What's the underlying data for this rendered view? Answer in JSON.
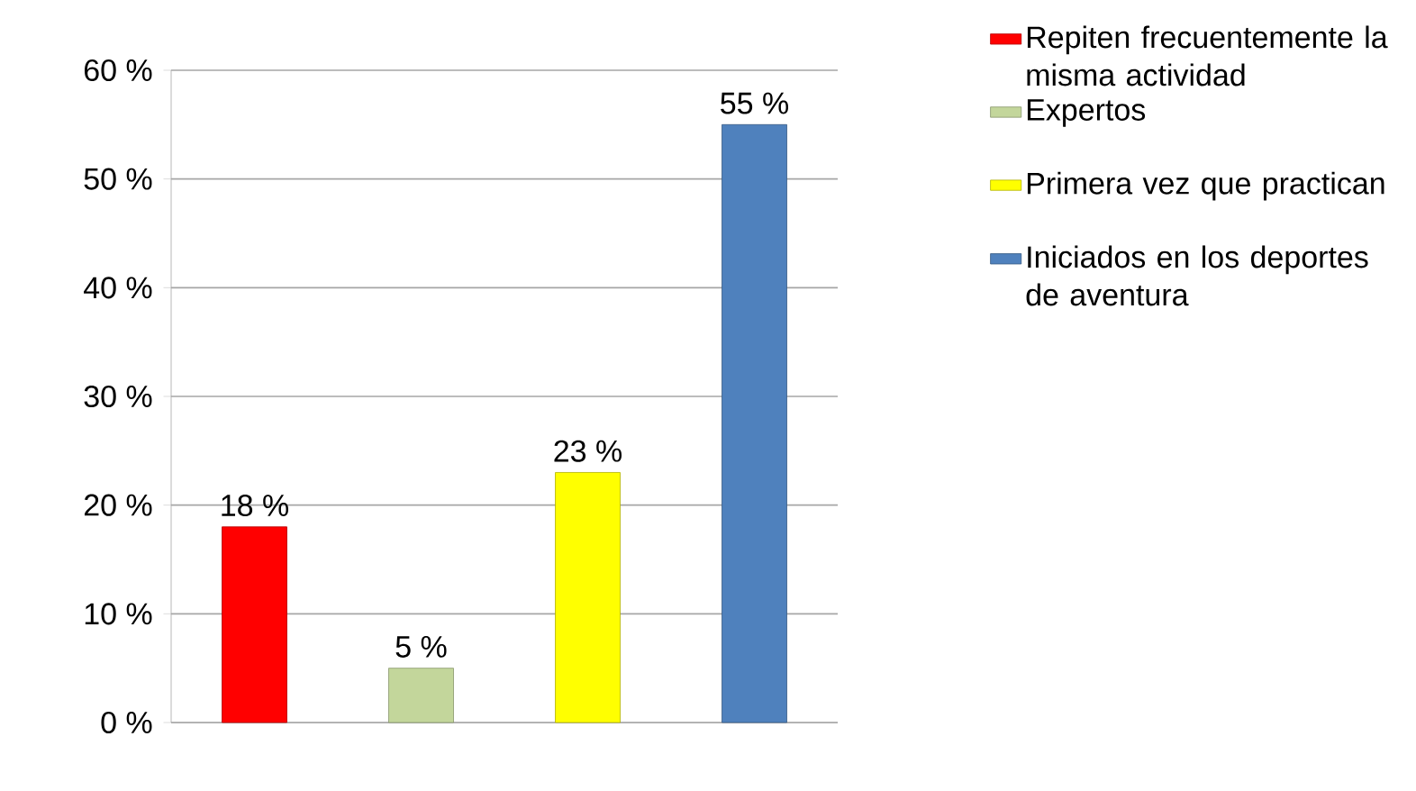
{
  "chart_data": {
    "type": "bar",
    "categories": [
      null,
      null,
      null,
      null
    ],
    "series": [
      {
        "name": "Repiten frecuentemente la misma actividad",
        "color": "#ff0000",
        "values": [
          18,
          null,
          null,
          null
        ],
        "value_labels": [
          "18 %",
          null,
          null,
          null
        ]
      },
      {
        "name": "Expertos",
        "color": "#c3d69b",
        "values": [
          null,
          5,
          null,
          null
        ],
        "value_labels": [
          null,
          "5 %",
          null,
          null
        ]
      },
      {
        "name": "Primera vez que practican",
        "color": "#ffff00",
        "values": [
          null,
          null,
          23,
          null
        ],
        "value_labels": [
          null,
          null,
          "23 %",
          null
        ]
      },
      {
        "name": "Iniciados en los deportes de aventura",
        "color": "#4f81bd",
        "values": [
          null,
          null,
          null,
          55
        ],
        "value_labels": [
          null,
          null,
          null,
          "55 %"
        ]
      }
    ],
    "ylim": [
      0,
      60
    ],
    "yticks": [
      {
        "value": 0,
        "label": "0 %"
      },
      {
        "value": 10,
        "label": "10 %"
      },
      {
        "value": 20,
        "label": "20 %"
      },
      {
        "value": 30,
        "label": "30 %"
      },
      {
        "value": 40,
        "label": "40 %"
      },
      {
        "value": 50,
        "label": "50 %"
      },
      {
        "value": 60,
        "label": "60 %"
      }
    ],
    "grid": "y",
    "legend": "right",
    "tick_labels": "y"
  }
}
